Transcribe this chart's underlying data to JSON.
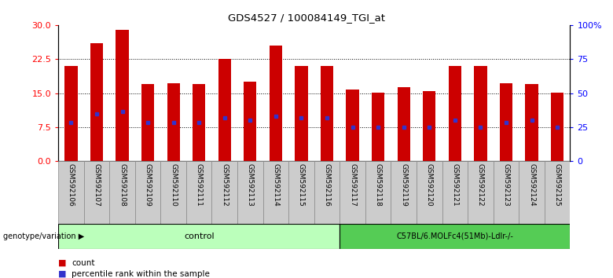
{
  "title": "GDS4527 / 100084149_TGI_at",
  "samples": [
    "GSM592106",
    "GSM592107",
    "GSM592108",
    "GSM592109",
    "GSM592110",
    "GSM592111",
    "GSM592112",
    "GSM592113",
    "GSM592114",
    "GSM592115",
    "GSM592116",
    "GSM592117",
    "GSM592118",
    "GSM592119",
    "GSM592120",
    "GSM592121",
    "GSM592122",
    "GSM592123",
    "GSM592124",
    "GSM592125"
  ],
  "counts": [
    21.0,
    26.0,
    29.0,
    17.0,
    17.2,
    17.0,
    22.5,
    17.5,
    25.5,
    21.0,
    21.0,
    15.8,
    15.1,
    16.3,
    15.5,
    21.0,
    21.0,
    17.2,
    17.0,
    15.1
  ],
  "percentile_ranks": [
    8.5,
    10.5,
    11.0,
    8.5,
    8.5,
    8.5,
    9.5,
    9.0,
    10.0,
    9.5,
    9.5,
    7.5,
    7.5,
    7.5,
    7.5,
    9.0,
    7.5,
    8.5,
    9.0,
    7.5
  ],
  "bar_color": "#cc0000",
  "dot_color": "#3333cc",
  "ylim_left": [
    0,
    30
  ],
  "ylim_right": [
    0,
    100
  ],
  "yticks_left": [
    0,
    7.5,
    15,
    22.5,
    30
  ],
  "yticks_right": [
    0,
    25,
    50,
    75,
    100
  ],
  "ytick_labels_right": [
    "0",
    "25",
    "50",
    "75",
    "100%"
  ],
  "bg_color": "#ffffff",
  "plot_bg_color": "#ffffff",
  "n_control": 11,
  "n_case": 9,
  "control_label": "control",
  "case_label": "C57BL/6.MOLFc4(51Mb)-Ldlr-/-",
  "control_color": "#bbffbb",
  "case_color": "#55cc55",
  "genotype_label": "genotype/variation",
  "legend_count": "count",
  "legend_pct": "percentile rank within the sample",
  "bar_width": 0.5,
  "tick_label_area_color": "#cccccc"
}
